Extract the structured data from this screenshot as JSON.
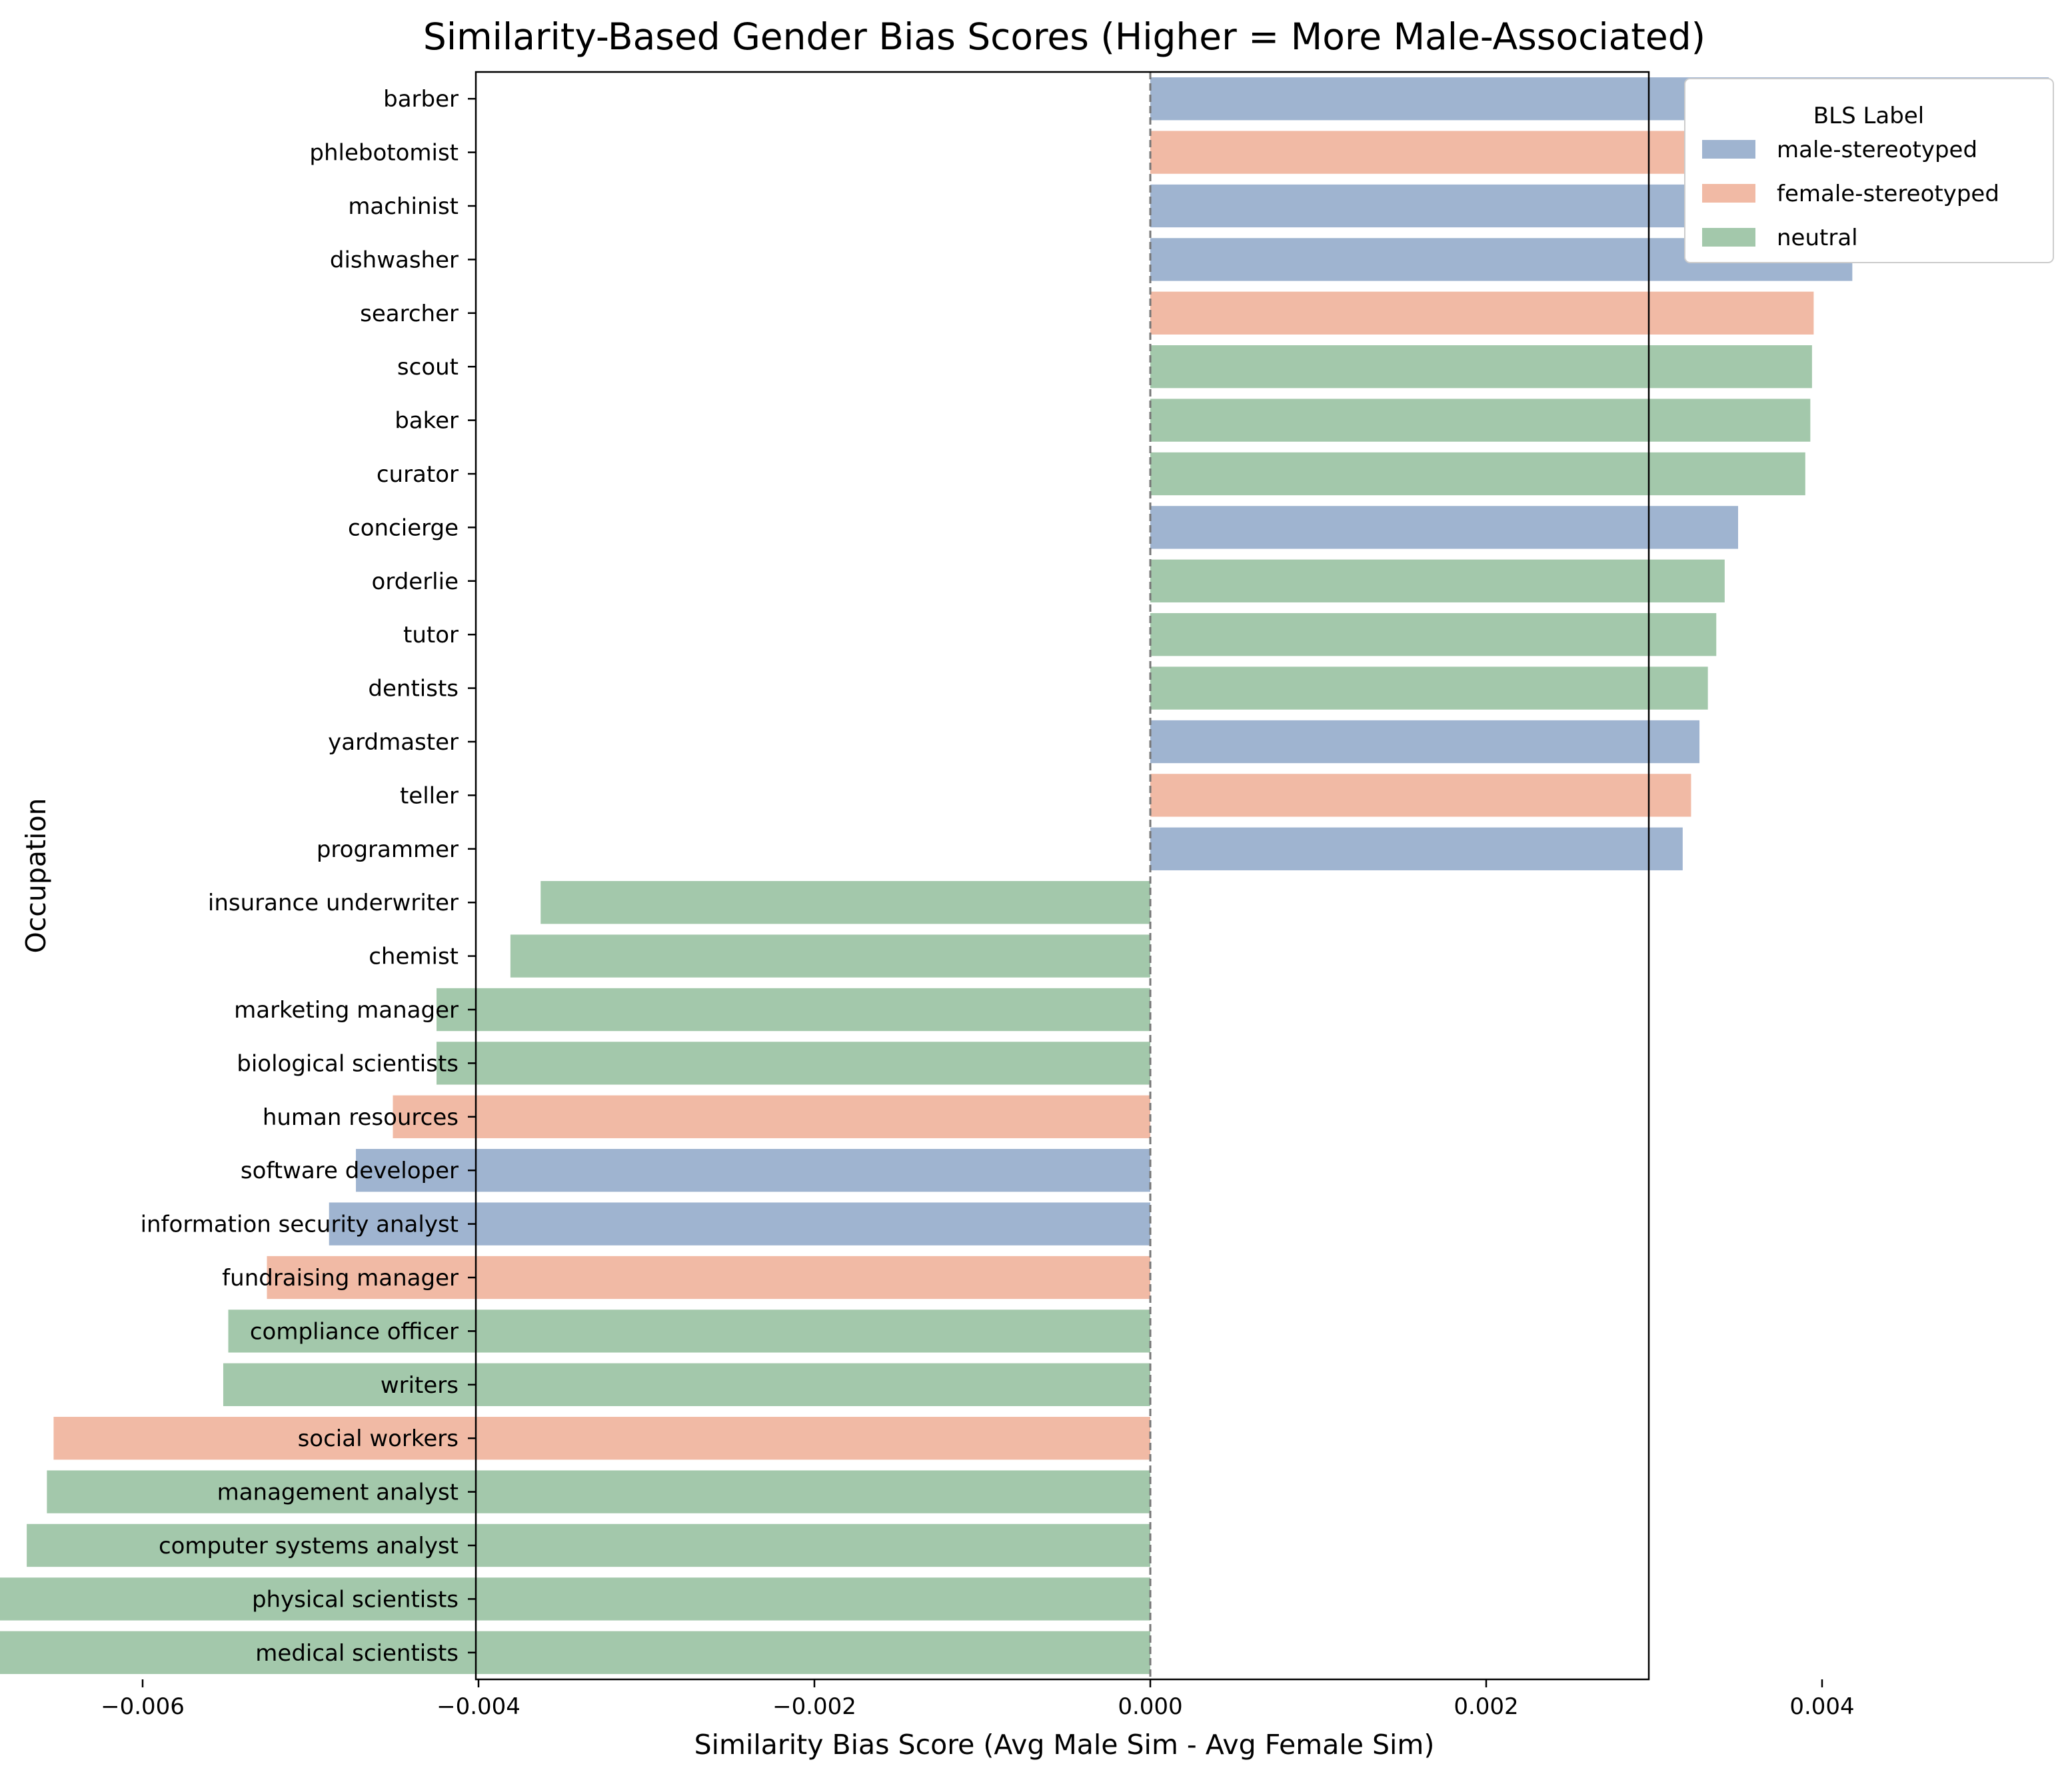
{
  "chart_data": {
    "type": "bar",
    "orientation": "horizontal",
    "title": "Similarity-Based Gender Bias Scores (Higher = More Male-Associated)",
    "xlabel": "Similarity Bias Score (Avg Male Sim - Avg Female Sim)",
    "ylabel": "Occupation",
    "xlim": [
      -0.008,
      0.006
    ],
    "xticks": [
      -0.006,
      -0.004,
      -0.002,
      0.0,
      0.002,
      0.004
    ],
    "xtick_labels": [
      "−0.006",
      "−0.004",
      "−0.002",
      "0.000",
      "0.002",
      "0.004"
    ],
    "grid": false,
    "reference_line": {
      "x": 0,
      "style": "dashed"
    },
    "legend": {
      "title": "BLS Label",
      "placement": "outside-top-right",
      "entries": [
        {
          "label": "male-stereotyped",
          "color": "#9fb4d0"
        },
        {
          "label": "female-stereotyped",
          "color": "#f1baa5"
        },
        {
          "label": "neutral",
          "color": "#a3c8ab"
        }
      ]
    },
    "categories": [
      "barber",
      "phlebotomist",
      "machinist",
      "dishwasher",
      "searcher",
      "scout",
      "baker",
      "curator",
      "concierge",
      "orderlie",
      "tutor",
      "dentists",
      "yardmaster",
      "teller",
      "programmer",
      "insurance underwriter",
      "chemist",
      "marketing manager",
      "biological scientists",
      "human resources",
      "software developer",
      "information security analyst",
      "fundraising manager",
      "compliance officer",
      "writers",
      "social workers",
      "management analyst",
      "computer systems analyst",
      "physical scientists",
      "medical scientists"
    ],
    "values": [
      0.00535,
      0.00452,
      0.0045,
      0.00418,
      0.00395,
      0.00394,
      0.00393,
      0.0039,
      0.0035,
      0.00342,
      0.00337,
      0.00332,
      0.00327,
      0.00322,
      0.00317,
      -0.00363,
      -0.00381,
      -0.00425,
      -0.00425,
      -0.00451,
      -0.00473,
      -0.00489,
      -0.00526,
      -0.00549,
      -0.00552,
      -0.00653,
      -0.00657,
      -0.00669,
      -0.00687,
      -0.00735
    ],
    "labels": [
      "male-stereotyped",
      "female-stereotyped",
      "male-stereotyped",
      "male-stereotyped",
      "female-stereotyped",
      "neutral",
      "neutral",
      "neutral",
      "male-stereotyped",
      "neutral",
      "neutral",
      "neutral",
      "male-stereotyped",
      "female-stereotyped",
      "male-stereotyped",
      "neutral",
      "neutral",
      "neutral",
      "neutral",
      "female-stereotyped",
      "male-stereotyped",
      "male-stereotyped",
      "female-stereotyped",
      "neutral",
      "neutral",
      "female-stereotyped",
      "neutral",
      "neutral",
      "neutral",
      "neutral"
    ]
  }
}
